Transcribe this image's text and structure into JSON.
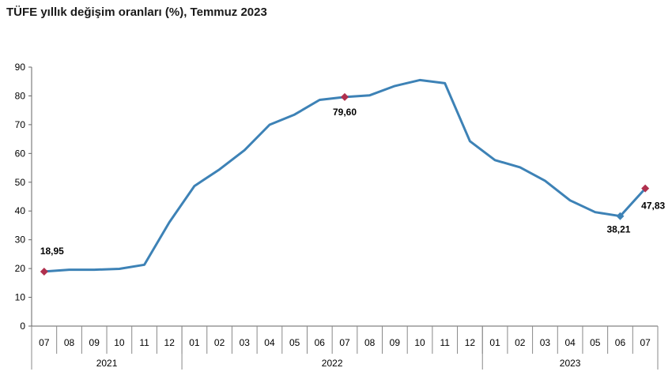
{
  "chart_data": {
    "type": "line",
    "title": "TÜFE yıllık değişim oranları (%), Temmuz 2023",
    "ylim": [
      0,
      90
    ],
    "yticks": [
      "0",
      "10",
      "20",
      "30",
      "40",
      "50",
      "60",
      "70",
      "80",
      "90"
    ],
    "grid": false,
    "months": [
      "07",
      "08",
      "09",
      "10",
      "11",
      "12",
      "01",
      "02",
      "03",
      "04",
      "05",
      "06",
      "07",
      "08",
      "09",
      "10",
      "11",
      "12",
      "01",
      "02",
      "03",
      "04",
      "05",
      "06",
      "07"
    ],
    "years": [
      {
        "label": "2021",
        "span": 6
      },
      {
        "label": "2022",
        "span": 12
      },
      {
        "label": "2023",
        "span": 7
      }
    ],
    "series": [
      {
        "color": "#3d82b6",
        "values": [
          18.95,
          19.58,
          19.58,
          19.89,
          21.31,
          36.08,
          48.69,
          54.44,
          61.14,
          69.97,
          73.5,
          78.62,
          79.6,
          80.21,
          83.45,
          85.51,
          84.39,
          64.27,
          57.68,
          55.18,
          50.51,
          43.68,
          39.59,
          38.21,
          47.83
        ]
      }
    ],
    "annotations": [
      {
        "index": 0,
        "label": "18,95",
        "marker_color": "#b0304e"
      },
      {
        "index": 12,
        "label": "79,60",
        "marker_color": "#b0304e"
      },
      {
        "index": 23,
        "label": "38,21",
        "marker_color": "#3d82b6"
      },
      {
        "index": 24,
        "label": "47,83",
        "marker_color": "#b0304e"
      }
    ]
  }
}
